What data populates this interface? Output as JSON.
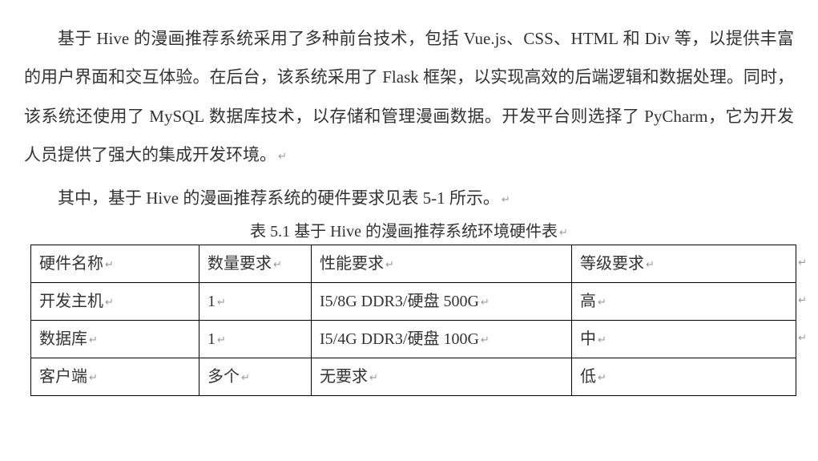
{
  "paragraph1_parts": [
    {
      "t": "基于 ",
      "latin": false
    },
    {
      "t": "Hive",
      "latin": true
    },
    {
      "t": " 的漫画推荐系统采用了多种前台技术，包括 ",
      "latin": false
    },
    {
      "t": "Vue.js",
      "latin": true
    },
    {
      "t": "、",
      "latin": false
    },
    {
      "t": "CSS",
      "latin": true
    },
    {
      "t": "、",
      "latin": false
    },
    {
      "t": "HTML",
      "latin": true
    },
    {
      "t": " 和 ",
      "latin": false
    },
    {
      "t": "Div",
      "latin": true
    },
    {
      "t": " 等，以提供丰富的用户界面和交互体验。在后台，该系统采用了 ",
      "latin": false
    },
    {
      "t": "Flask",
      "latin": true
    },
    {
      "t": " 框架，以实现高效的后端逻辑和数据处理。同时，该系统还使用了 ",
      "latin": false
    },
    {
      "t": "MySQL",
      "latin": true
    },
    {
      "t": " 数据库技术，以存储和管理漫画数据。开发平台则选择了 ",
      "latin": false
    },
    {
      "t": "PyCharm",
      "latin": true
    },
    {
      "t": "，它为开发人员提供了强大的集成开发环境。",
      "latin": false
    }
  ],
  "paragraph2_parts": [
    {
      "t": "其中，基于 ",
      "latin": false
    },
    {
      "t": "Hive",
      "latin": true
    },
    {
      "t": " 的漫画推荐系统的硬件要求见表 5-1 所示。",
      "latin": false
    }
  ],
  "caption_parts": [
    {
      "t": "表 5.1 基于 ",
      "latin": false
    },
    {
      "t": "Hive",
      "latin": true
    },
    {
      "t": " 的漫画推荐系统环境硬件表",
      "latin": false
    }
  ],
  "return_glyph": "↵",
  "table": {
    "header": [
      "硬件名称",
      "数量要求",
      "性能要求",
      "等级要求"
    ],
    "rows": [
      [
        "开发主机",
        "1",
        "I5/8G DDR3/硬盘 500G",
        "高"
      ],
      [
        "数据库",
        "1",
        "I5/4G DDR3/硬盘 100G",
        "中"
      ],
      [
        "客户端",
        "多个",
        "无要求",
        "低"
      ]
    ],
    "header_outer_ret_visible": [
      false,
      false,
      false,
      true
    ],
    "row_outer_ret_visible": [
      true,
      true,
      false
    ]
  }
}
